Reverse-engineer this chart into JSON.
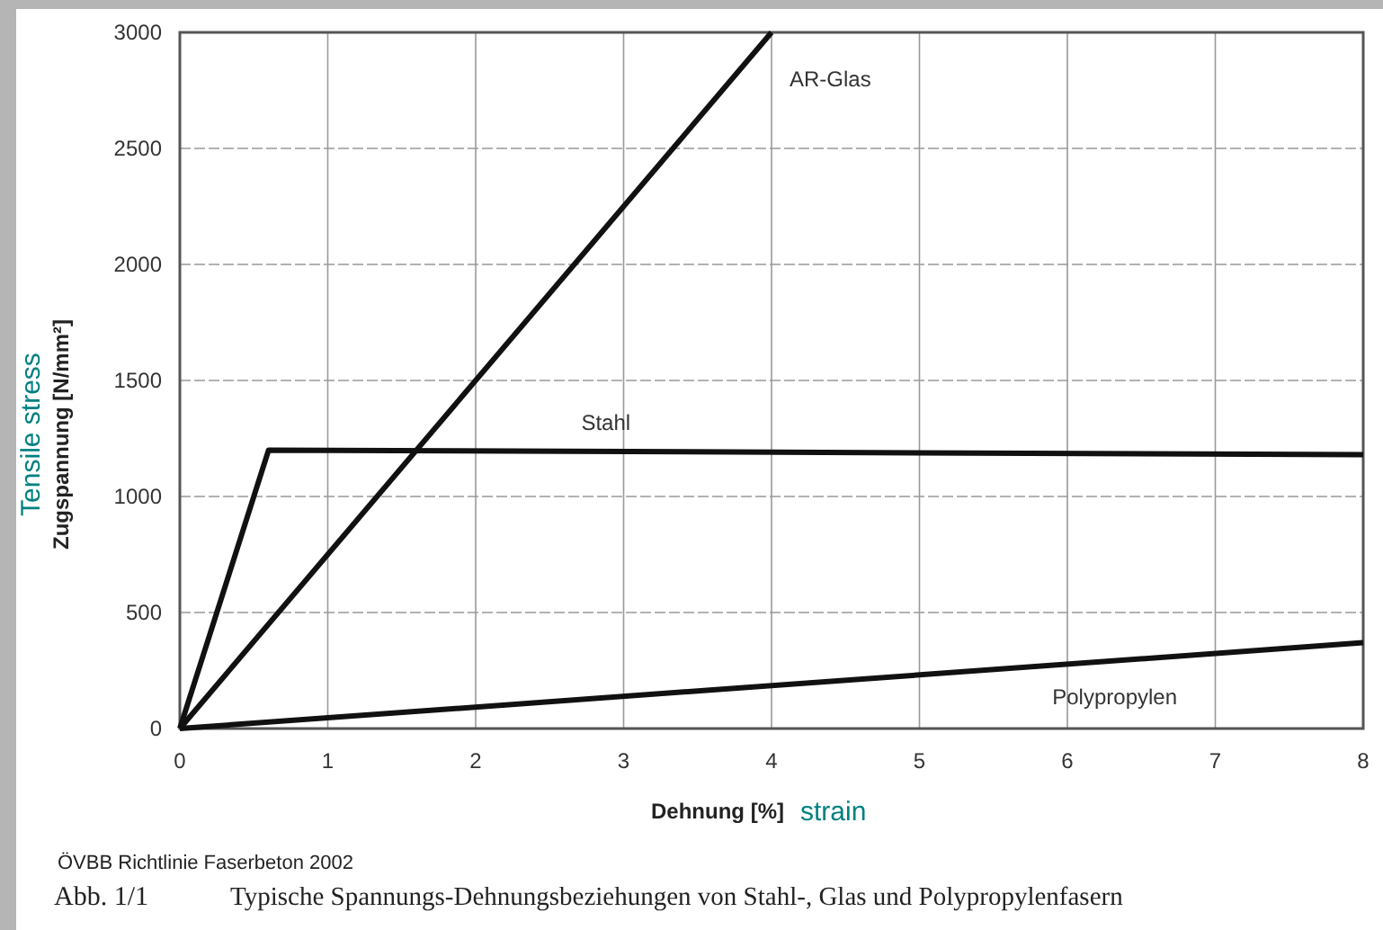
{
  "chart_data": {
    "type": "line",
    "xlabel": "Dehnung [%]",
    "ylabel": "Zugspannung [N/mm²]",
    "series": [
      {
        "name": "AR-Glas",
        "color": "#111111",
        "x": [
          0,
          4
        ],
        "values": [
          0,
          3000
        ]
      },
      {
        "name": "Stahl",
        "color": "#111111",
        "x": [
          0,
          0.6,
          8
        ],
        "values": [
          0,
          1200,
          1180
        ]
      },
      {
        "name": "Polypropylen",
        "color": "#111111",
        "x": [
          0,
          8
        ],
        "values": [
          0,
          370
        ]
      }
    ],
    "xlim": [
      0,
      8
    ],
    "ylim": [
      0,
      3000
    ],
    "xticks": [
      0,
      1,
      2,
      3,
      4,
      5,
      6,
      7,
      8
    ],
    "yticks": [
      0,
      500,
      1000,
      1500,
      2000,
      2500,
      3000
    ],
    "grid": true,
    "marker": "none",
    "line_style": "solid",
    "annotations": [
      "Tensile stress",
      "strain",
      "ÖVBB Richtlinie Faserbeton 2002",
      "Abb. 1/1",
      "Typische Spannungs-Dehnungsbeziehungen von Stahl-, Glas und Polypropylenfasern"
    ]
  }
}
